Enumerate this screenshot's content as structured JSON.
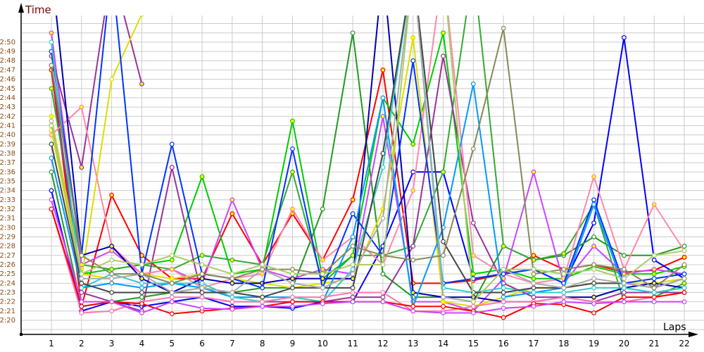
{
  "chart_data": {
    "type": "line",
    "ylabel": "Time",
    "xlabel": "Laps",
    "x": [
      1,
      2,
      3,
      4,
      5,
      6,
      7,
      8,
      9,
      10,
      11,
      12,
      13,
      14,
      15,
      16,
      17,
      18,
      19,
      20,
      21,
      22
    ],
    "yticks": [
      "2:20",
      "2:21",
      "2:22",
      "2:23",
      "2:24",
      "2:25",
      "2:26",
      "2:27",
      "2:28",
      "2:29",
      "2:30",
      "2:31",
      "2:32",
      "2:33",
      "2:34",
      "2:35",
      "2:36",
      "2:37",
      "2:38",
      "2:39",
      "2:40",
      "2:41",
      "2:42",
      "2:43",
      "2:44",
      "2:45",
      "2:46",
      "2:47",
      "2:48",
      "2:49",
      "2:50"
    ],
    "ylim": [
      "2:18.5",
      "2:52.5"
    ],
    "grid": true,
    "series": [
      {
        "color": "#ff0000",
        "marker": "#ffff00",
        "values": [
          "2:47",
          "2:21.5",
          "2:33.5",
          "2:27",
          "2:24.5",
          "2:24.5",
          "2:31.5",
          "2:26",
          "2:31.5",
          "2:26.5",
          "2:33",
          "2:47",
          "2:24",
          "2:24",
          "2:24.3",
          "2:25",
          "2:27",
          "2:25.5",
          "2:26",
          "2:25.2",
          "2:25.4",
          "2:26.8"
        ]
      },
      {
        "color": "#0000ff",
        "marker": "#ffffff",
        "values": [
          "2:34",
          "2:21",
          "2:22",
          "2:21.5",
          "2:22",
          "2:22.5",
          "2:21.5",
          "2:21.5",
          "2:21.3",
          "2:22",
          "2:22",
          "2:28",
          "2:36",
          "2:36",
          "2:24.5",
          "2:25",
          "2:25.5",
          "2:24",
          "2:30.5",
          "2:50.5",
          "2:26.5",
          "2:24.5"
        ]
      },
      {
        "color": "#00cc00",
        "marker": "#ffff00",
        "values": [
          "2:41",
          "2:25",
          "2:25.5",
          "2:26",
          "2:26.5",
          "2:35.5",
          "2:25",
          "2:25.5",
          "2:41.5",
          "2:24.5",
          "2:27",
          "2:44",
          "2:39",
          "2:51",
          "2:25",
          "2:25.5",
          "2:24.5",
          "2:24.5",
          "2:25.8",
          "2:25",
          "2:25",
          "2:25.8"
        ]
      },
      {
        "color": "#229922",
        "marker": "#ffffff",
        "values": [
          "2:36",
          "2:21.5",
          "2:22",
          "2:22.5",
          "2:23",
          "2:23.5",
          "2:23",
          "2:23.5",
          "2:23.5",
          "2:32",
          "2:51",
          "2:25",
          "2:22.5",
          "2:22.5",
          "2:22",
          "2:28",
          "2:26.5",
          "2:27",
          "2:29",
          "2:27",
          "2:27",
          "2:28"
        ]
      },
      {
        "color": "#33aa33",
        "marker": "#ffff00",
        "values": [
          "2:45",
          "2:26",
          "2:25.5",
          "2:26",
          "2:25.5",
          "2:27",
          "2:26.5",
          "2:26",
          "2:36",
          "2:24",
          "2:27",
          "2:27",
          "2:28",
          "2:36",
          "2:58",
          "2:28",
          "2:26.5",
          "2:27.2",
          "2:32.5",
          "2:22",
          "2:22.5",
          "2:24"
        ]
      },
      {
        "color": "#cc44ff",
        "marker": "#ffff00",
        "values": [
          "2:51",
          "2:26",
          "2:27.5",
          "2:25",
          "2:25.5",
          "2:24",
          "2:33",
          "2:25.5",
          "2:24.5",
          "2:25.5",
          "2:25",
          "2:42",
          "2:22",
          "2:22",
          "2:21",
          "2:24.5",
          "2:36",
          "2:24",
          "2:28",
          "2:25",
          "2:25.5",
          "2:25"
        ]
      },
      {
        "color": "#993399",
        "marker": "#ffff00",
        "values": [
          "2:48.5",
          "2:36.5",
          "2:58",
          "2:45.5",
          null,
          null,
          null,
          null,
          null,
          null,
          null,
          null,
          null,
          null,
          null,
          null,
          null,
          null,
          null,
          null,
          null,
          null
        ]
      },
      {
        "color": "#993399",
        "marker": "#ffffff",
        "values": [
          "2:47.5",
          "2:23",
          "2:22",
          "2:21",
          "2:36.5",
          "2:22.5",
          "2:22",
          "2:22",
          "2:22",
          "2:22",
          "2:22.5",
          "2:22.5",
          "2:28",
          "2:48.5",
          "2:30.5",
          "2:24",
          "2:22.5",
          "2:22.5",
          "2:22",
          "2:23",
          "2:23",
          "2:23"
        ]
      },
      {
        "color": "#dddd00",
        "marker": "#ffffff",
        "values": [
          "2:40.5",
          "2:24.5",
          "2:46",
          "2:53",
          null,
          null,
          null,
          null,
          null,
          null,
          null,
          null,
          null,
          null,
          null,
          null,
          null,
          null,
          null,
          null,
          null,
          null
        ]
      },
      {
        "color": "#dddd00",
        "marker": "#ffff00",
        "values": [
          "2:42",
          "2:25",
          "2:24.5",
          "2:25",
          "2:24.5",
          "2:25",
          "2:24.5",
          "2:24",
          "2:23.5",
          "2:24",
          "2:24.5",
          "2:32",
          "2:50.5",
          "2:22",
          "2:21.5",
          "2:22.5",
          "2:23.5",
          "2:23.5",
          "2:24",
          "2:24",
          "2:24",
          "2:24.5"
        ]
      },
      {
        "color": "#ff88aa",
        "marker": "#ffff00",
        "values": [
          "2:40",
          "2:43",
          "2:28",
          "2:25",
          "2:25.5",
          "2:23.5",
          "2:24.5",
          "2:25",
          "2:32",
          "2:26.5",
          "2:29",
          "2:26",
          "2:34",
          "2:58",
          "2:27",
          "2:25",
          "2:24",
          "2:24.5",
          "2:35.5",
          "2:25.5",
          "2:32.5",
          "2:27.5"
        ]
      },
      {
        "color": "#0000aa",
        "marker": "#ffff00",
        "values": [
          "2:58",
          "2:27",
          "2:28",
          "2:24.5",
          "2:23",
          "2:24.5",
          "2:24",
          "2:24",
          "2:24.5",
          "2:24.5",
          "2:24.5",
          "2:58",
          "2:23",
          "2:22.5",
          "2:22.5",
          "2:22",
          "2:22",
          "2:22.5",
          "2:22.5",
          "2:23.5",
          "2:24",
          "2:23.5"
        ]
      },
      {
        "color": "#0033ff",
        "marker": "#ffffff",
        "values": [
          "2:49",
          "2:27",
          "2:58",
          "2:25",
          "2:39",
          "2:25",
          "2:24.5",
          "2:23.5",
          "2:38.5",
          "2:23.5",
          "2:31.5",
          "2:27",
          "2:48",
          "2:24",
          "2:24.5",
          "2:25",
          "2:25.5",
          "2:24",
          "2:33",
          "2:24",
          "2:24.5",
          "2:25"
        ]
      },
      {
        "color": "#0099ff",
        "marker": "#ffffff",
        "values": [
          "2:37.5",
          "2:23.5",
          "2:24",
          "2:23.5",
          "2:24",
          "2:23.5",
          "2:22.5",
          "2:22.5",
          "2:22.5",
          "2:22",
          "2:29",
          "2:44",
          "2:21.5",
          "2:30",
          "2:45.5",
          "2:22.5",
          "2:23",
          "2:23.5",
          "2:32.5",
          "2:23.5",
          "2:23",
          "2:23.5"
        ]
      },
      {
        "color": "#33cccc",
        "marker": "#ffffff",
        "values": [
          "2:50",
          "2:23.5",
          "2:25",
          "2:24",
          "2:24",
          "2:24",
          "2:22.5",
          "2:22",
          "2:22.5",
          "2:22",
          "2:25.5",
          "2:36.5",
          "2:58",
          "2:23.5",
          "2:23",
          "2:23.5",
          "2:23",
          "2:23",
          "2:23.5",
          "2:23.5",
          "2:23",
          "2:23.5"
        ]
      },
      {
        "color": "#444444",
        "marker": "#ffffff",
        "values": [
          "2:39",
          "2:24",
          "2:23",
          "2:23",
          "2:23",
          "2:23",
          "2:23",
          "2:22.5",
          "2:23.5",
          "2:23.5",
          "2:23.5",
          "2:38",
          "2:58",
          "2:28.5",
          "2:23",
          "2:23",
          "2:23.5",
          "2:23.5",
          "2:24",
          "2:24",
          "2:23.5",
          "2:24.5"
        ]
      },
      {
        "color": "#aaaaaa",
        "marker": "#ffffff",
        "values": [
          "2:41.5",
          "2:24.5",
          "2:24.5",
          "2:25",
          "2:23",
          "2:23.5",
          "2:23",
          "2:25.5",
          "2:24",
          "2:23.5",
          "2:25",
          "2:31",
          "2:58",
          "2:22.5",
          "2:22",
          "2:25.5",
          "2:24",
          "2:23.5",
          "2:24.5",
          "2:24",
          "2:23.5",
          "2:24.5"
        ]
      },
      {
        "color": "#888855",
        "marker": "#ffffff",
        "values": [
          "2:47.5",
          "2:27",
          "2:25",
          "2:25",
          "2:24",
          "2:25",
          "2:24.5",
          "2:25.5",
          "2:25.5",
          "2:25",
          "2:28",
          "2:27",
          "2:26.5",
          "2:27",
          "2:38.5",
          "2:51.5",
          "2:25",
          "2:25.5",
          "2:26",
          "2:25.5",
          "2:23.5",
          "2:26"
        ]
      },
      {
        "color": "#aacc66",
        "marker": "#ffffff",
        "values": [
          "2:41",
          "2:25",
          "2:26.5",
          "2:26",
          "2:27",
          "2:26",
          "2:25",
          "2:26",
          "2:25",
          "2:25",
          "2:26",
          "2:26",
          "2:58",
          "2:58",
          "2:22",
          "2:25.5",
          "2:25.5",
          "2:25",
          "2:25.5",
          "2:24.5",
          "2:27",
          "2:27.5"
        ]
      },
      {
        "color": "#ff77aa",
        "marker": "#ffffff",
        "values": [
          "2:32",
          "2:20.8",
          "2:21",
          "2:22",
          "2:22.5",
          "2:22.5",
          "2:22",
          "2:22",
          "2:22.5",
          "2:22.5",
          "2:23",
          "2:23",
          "2:21",
          "2:21",
          "2:21.5",
          "2:22",
          "2:22",
          "2:22.5",
          "2:22",
          "2:22",
          "2:22.5",
          "2:23"
        ]
      },
      {
        "color": "#ff0000",
        "marker": "#ffffff",
        "values": [
          "2:32",
          "2:21.5",
          "2:22",
          "2:21.8",
          "2:20.7",
          "2:21",
          "2:21.3",
          "2:21.5",
          "2:22",
          "2:22",
          "2:22",
          "2:22",
          "2:21.5",
          "2:21.5",
          "2:21",
          "2:20.3",
          "2:21.8",
          "2:21.7",
          "2:20.8",
          "2:22.5",
          "2:22.5",
          "2:23"
        ]
      },
      {
        "color": "#cc44ff",
        "marker": "#ffffff",
        "values": [
          "2:33",
          "2:22",
          "2:22",
          "2:20.8",
          "2:22",
          "2:21.3",
          "2:21.2",
          "2:21.5",
          "2:21.5",
          "2:21.8",
          "2:22",
          "2:22",
          "2:21",
          "2:20.8",
          "2:20.8",
          "2:21.3",
          "2:21.5",
          "2:22",
          "2:21.8",
          "2:22",
          "2:22",
          "2:22"
        ]
      }
    ]
  }
}
